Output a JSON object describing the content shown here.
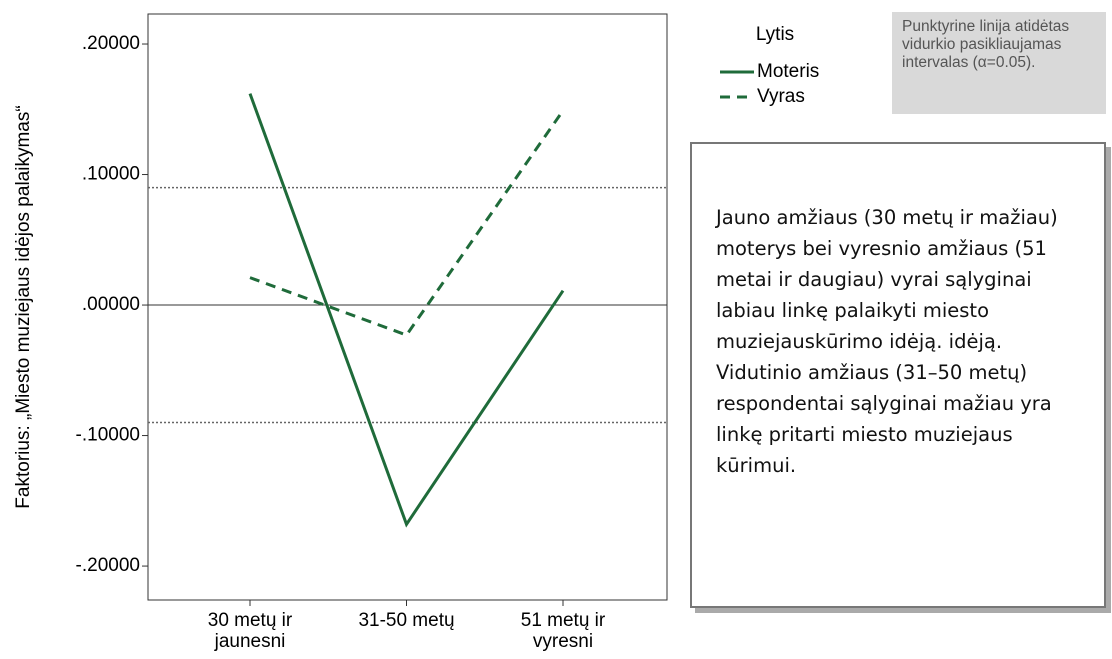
{
  "chart_data": {
    "type": "line",
    "y_axis_label": "Faktorius: „Miesto muziejaus idėjos palaikymas“",
    "categories": [
      "30 metų ir jaunesni",
      "31-50 metų",
      "51 metų ir vyresni"
    ],
    "series": [
      {
        "name": "Moteris",
        "color": "#1f6b3a",
        "line_style": "solid",
        "values": [
          0.162,
          -0.168,
          0.011
        ]
      },
      {
        "name": "Vyras",
        "color": "#1f6b3a",
        "line_style": "dashed",
        "values": [
          0.021,
          -0.023,
          0.149
        ]
      }
    ],
    "ylim": [
      -0.226,
      0.223
    ],
    "yticks": [
      {
        "value": 0.2,
        "label": ".20000"
      },
      {
        "value": 0.1,
        "label": ".10000"
      },
      {
        "value": 0,
        "label": ".00000"
      },
      {
        "value": -0.1,
        "label": "-.10000"
      },
      {
        "value": -0.2,
        "label": "-.20000"
      }
    ],
    "reference_lines": [
      0.09,
      -0.09
    ],
    "zero_line": 0,
    "legend_title": "Lytis",
    "legend_position": "right",
    "note": "Punktyrine linija atidėtas vidurkio pasikliaujamas intervalas (α=0.05).",
    "annotation": "Jauno amžiaus (30 metų ir mažiau) moterys bei vyresnio amžiaus (51 metai ir daugiau) vyrai sąlyginai labiau linkę palaikyti miesto muziejauskūrimo idėją. idėją. Vidutinio amžiaus (31–50 metų) respondentai sąlyginai mažiau yra linkę pritarti miesto muziejaus kūrimui."
  }
}
